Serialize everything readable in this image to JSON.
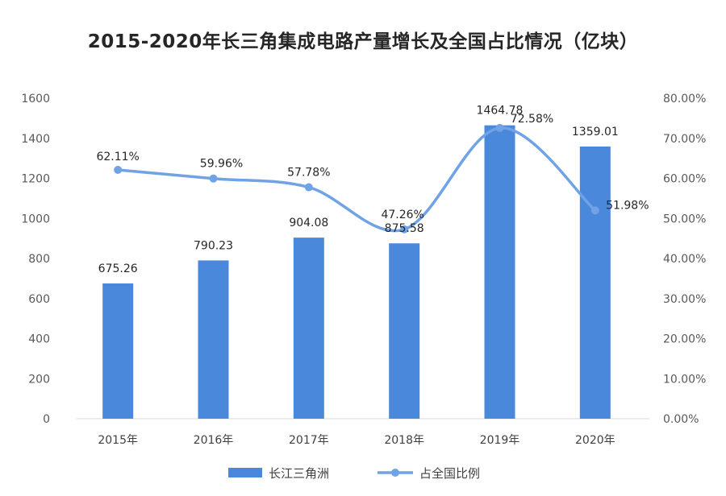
{
  "chart_data": {
    "type": "bar",
    "title": "2015-2020年长三角集成电路产量增长及全国占比情况（亿块）",
    "categories": [
      "2015年",
      "2016年",
      "2017年",
      "2018年",
      "2019年",
      "2020年"
    ],
    "series": [
      {
        "name": "长江三角洲",
        "type": "bar",
        "axis": "left",
        "color": "#4a88db",
        "values": [
          675.26,
          790.23,
          904.08,
          875.58,
          1464.78,
          1359.01
        ],
        "labels": [
          "675.26",
          "790.23",
          "904.08",
          "875.58",
          "1464.78",
          "1359.01"
        ]
      },
      {
        "name": "占全国比例",
        "type": "line",
        "axis": "right",
        "color": "#6fa3e6",
        "values": [
          62.11,
          59.96,
          57.78,
          47.26,
          72.58,
          51.98
        ],
        "labels": [
          "62.11%",
          "59.96%",
          "57.78%",
          "47.26%",
          "72.58%",
          "51.98%"
        ]
      }
    ],
    "y_left": {
      "range": [
        0,
        1600
      ],
      "ticks": [
        0,
        200,
        400,
        600,
        800,
        1000,
        1200,
        1400,
        1600
      ],
      "tick_labels": [
        "0",
        "200",
        "400",
        "600",
        "800",
        "1000",
        "1200",
        "1400",
        "1600"
      ]
    },
    "y_right": {
      "range": [
        0,
        80
      ],
      "ticks": [
        0,
        10,
        20,
        30,
        40,
        50,
        60,
        70,
        80
      ],
      "tick_labels": [
        "0.00%",
        "10.00%",
        "20.00%",
        "30.00%",
        "40.00%",
        "50.00%",
        "60.00%",
        "70.00%",
        "80.00%"
      ]
    },
    "grid": false,
    "legend_position": "bottom-center"
  },
  "colors": {
    "bar": "#4a88db",
    "line": "#6fa3e6",
    "axis_text": "#595959",
    "axis_line": "#d9d9d9"
  }
}
